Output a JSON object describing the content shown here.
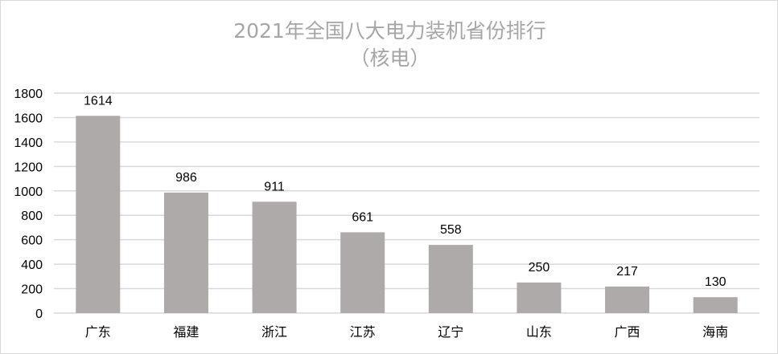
{
  "chart_data": {
    "type": "bar",
    "title": "2021年全国八大电力装机省份排行",
    "subtitle": "（核电）",
    "categories": [
      "广东",
      "福建",
      "浙江",
      "江苏",
      "辽宁",
      "山东",
      "广西",
      "海南"
    ],
    "values": [
      1614,
      986,
      911,
      661,
      558,
      250,
      217,
      130
    ],
    "xlabel": "",
    "ylabel": "",
    "ylim": [
      0,
      1800
    ],
    "yticks": [
      0,
      200,
      400,
      600,
      800,
      1000,
      1200,
      1400,
      1600,
      1800
    ],
    "grid": true,
    "data_labels": true,
    "colors": {
      "bar": "#aeaaa9",
      "grid": "#d9d9d9",
      "title": "#a6a6a6"
    }
  }
}
